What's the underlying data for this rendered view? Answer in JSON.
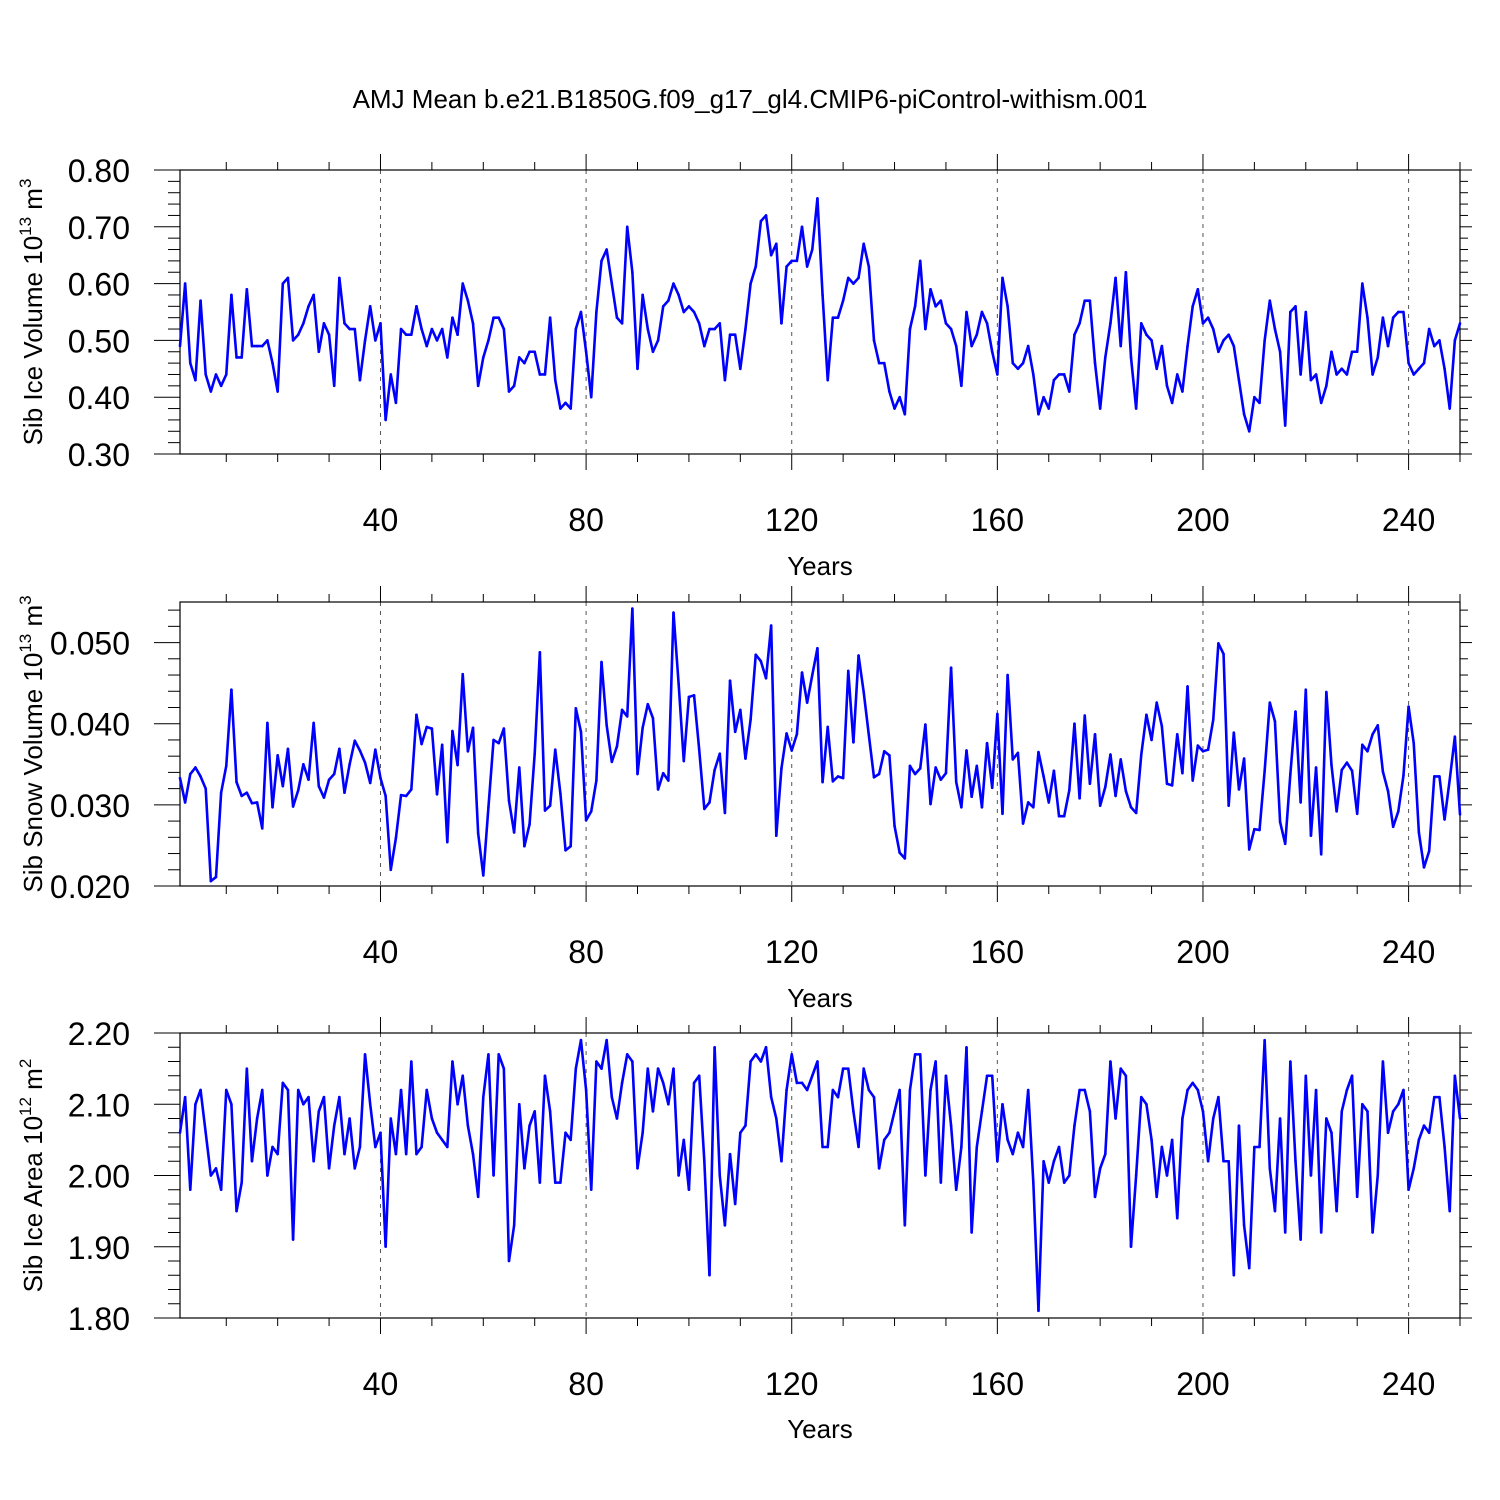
{
  "chart_data": {
    "type": "line",
    "title": "AMJ Mean b.e21.B1850G.f09_g17_gl4.CMIP6-piControl-withism.001",
    "line_color": "#0000ff",
    "grid": "vertical dashed at major x ticks",
    "x": {
      "label": "Years",
      "range": [
        1,
        250
      ],
      "ticks": [
        40,
        80,
        120,
        160,
        200,
        240
      ],
      "tick_labels": [
        "40",
        "80",
        "120",
        "160",
        "200",
        "240"
      ]
    },
    "panels": [
      {
        "id": "ice-volume",
        "ylabel": {
          "base": "Sib Ice Volume 10",
          "exp": "13",
          "unit": " m",
          "unit_exp": "3"
        },
        "ylim": [
          0.3,
          0.8
        ],
        "yticks": [
          0.3,
          0.4,
          0.5,
          0.6,
          0.7,
          0.8
        ],
        "ytick_labels": [
          "0.30",
          "0.40",
          "0.50",
          "0.60",
          "0.70",
          "0.80"
        ],
        "values": [
          0.49,
          0.6,
          0.46,
          0.43,
          0.57,
          0.44,
          0.41,
          0.44,
          0.42,
          0.44,
          0.58,
          0.47,
          0.47,
          0.59,
          0.49,
          0.49,
          0.49,
          0.5,
          0.46,
          0.41,
          0.6,
          0.61,
          0.5,
          0.51,
          0.53,
          0.56,
          0.58,
          0.48,
          0.53,
          0.51,
          0.42,
          0.61,
          0.53,
          0.52,
          0.52,
          0.43,
          0.5,
          0.56,
          0.5,
          0.53,
          0.36,
          0.44,
          0.39,
          0.52,
          0.51,
          0.51,
          0.56,
          0.52,
          0.49,
          0.52,
          0.5,
          0.52,
          0.47,
          0.54,
          0.51,
          0.6,
          0.57,
          0.53,
          0.42,
          0.47,
          0.5,
          0.54,
          0.54,
          0.52,
          0.41,
          0.42,
          0.47,
          0.46,
          0.48,
          0.48,
          0.44,
          0.44,
          0.54,
          0.43,
          0.38,
          0.39,
          0.38,
          0.52,
          0.55,
          0.48,
          0.4,
          0.55,
          0.64,
          0.66,
          0.6,
          0.54,
          0.53,
          0.7,
          0.62,
          0.45,
          0.58,
          0.52,
          0.48,
          0.5,
          0.56,
          0.57,
          0.6,
          0.58,
          0.55,
          0.56,
          0.55,
          0.53,
          0.49,
          0.52,
          0.52,
          0.53,
          0.43,
          0.51,
          0.51,
          0.45,
          0.52,
          0.6,
          0.63,
          0.71,
          0.72,
          0.65,
          0.67,
          0.53,
          0.63,
          0.64,
          0.64,
          0.7,
          0.63,
          0.66,
          0.75,
          0.58,
          0.43,
          0.54,
          0.54,
          0.57,
          0.61,
          0.6,
          0.61,
          0.67,
          0.63,
          0.5,
          0.46,
          0.46,
          0.41,
          0.38,
          0.4,
          0.37,
          0.52,
          0.56,
          0.64,
          0.52,
          0.59,
          0.56,
          0.57,
          0.53,
          0.52,
          0.49,
          0.42,
          0.55,
          0.49,
          0.51,
          0.55,
          0.53,
          0.48,
          0.44,
          0.61,
          0.56,
          0.46,
          0.45,
          0.46,
          0.49,
          0.44,
          0.37,
          0.4,
          0.38,
          0.43,
          0.44,
          0.44,
          0.41,
          0.51,
          0.53,
          0.57,
          0.57,
          0.46,
          0.38,
          0.47,
          0.53,
          0.61,
          0.49,
          0.62,
          0.47,
          0.38,
          0.53,
          0.51,
          0.5,
          0.45,
          0.49,
          0.42,
          0.39,
          0.44,
          0.41,
          0.49,
          0.56,
          0.59,
          0.53,
          0.54,
          0.52,
          0.48,
          0.5,
          0.51,
          0.49,
          0.43,
          0.37,
          0.34,
          0.4,
          0.39,
          0.5,
          0.57,
          0.52,
          0.48,
          0.35,
          0.55,
          0.56,
          0.44,
          0.55,
          0.43,
          0.44,
          0.39,
          0.42,
          0.48,
          0.44,
          0.45,
          0.44,
          0.48,
          0.48,
          0.6,
          0.54,
          0.44,
          0.47,
          0.54,
          0.49,
          0.54,
          0.55,
          0.55,
          0.46,
          0.44,
          0.45,
          0.46,
          0.52,
          0.49,
          0.5,
          0.45,
          0.38,
          0.5,
          0.53
        ]
      },
      {
        "id": "snow-volume",
        "ylabel": {
          "base": "Sib Snow Volume 10",
          "exp": "13",
          "unit": " m",
          "unit_exp": "3"
        },
        "ylim": [
          0.02,
          0.055
        ],
        "yticks": [
          0.02,
          0.03,
          0.04,
          0.05
        ],
        "ytick_labels": [
          "0.020",
          "0.030",
          "0.040",
          "0.050"
        ],
        "values": [
          0.0333,
          0.0303,
          0.0338,
          0.0346,
          0.0335,
          0.032,
          0.0206,
          0.0211,
          0.0315,
          0.0348,
          0.0442,
          0.0328,
          0.0311,
          0.0315,
          0.0302,
          0.0303,
          0.0271,
          0.0401,
          0.0297,
          0.0361,
          0.0323,
          0.0369,
          0.0298,
          0.0318,
          0.035,
          0.0331,
          0.0401,
          0.0323,
          0.0309,
          0.0331,
          0.0338,
          0.0369,
          0.0315,
          0.035,
          0.0379,
          0.0367,
          0.0352,
          0.0327,
          0.0368,
          0.0333,
          0.0311,
          0.022,
          0.0259,
          0.0312,
          0.0311,
          0.0319,
          0.0411,
          0.0375,
          0.0396,
          0.0394,
          0.0313,
          0.0374,
          0.0254,
          0.0391,
          0.0349,
          0.0461,
          0.0366,
          0.0395,
          0.0265,
          0.0213,
          0.0297,
          0.038,
          0.0376,
          0.0394,
          0.0305,
          0.0266,
          0.0346,
          0.0249,
          0.0276,
          0.0363,
          0.0488,
          0.0293,
          0.0299,
          0.0368,
          0.0314,
          0.0244,
          0.0249,
          0.0419,
          0.039,
          0.0281,
          0.0292,
          0.033,
          0.0476,
          0.0398,
          0.0353,
          0.0372,
          0.0417,
          0.0409,
          0.0542,
          0.0338,
          0.0395,
          0.0424,
          0.0407,
          0.0319,
          0.0339,
          0.033,
          0.0537,
          0.0449,
          0.0354,
          0.0433,
          0.0435,
          0.0368,
          0.0295,
          0.0303,
          0.0343,
          0.0363,
          0.029,
          0.0453,
          0.039,
          0.0417,
          0.0357,
          0.0405,
          0.0485,
          0.0477,
          0.0456,
          0.0521,
          0.0262,
          0.0345,
          0.0388,
          0.0367,
          0.0387,
          0.0463,
          0.0426,
          0.046,
          0.0493,
          0.0328,
          0.0396,
          0.0329,
          0.0335,
          0.0333,
          0.0465,
          0.0377,
          0.0484,
          0.0439,
          0.0386,
          0.0334,
          0.0338,
          0.0366,
          0.0361,
          0.0274,
          0.0241,
          0.0234,
          0.0348,
          0.0338,
          0.0345,
          0.0399,
          0.0301,
          0.0346,
          0.0331,
          0.0339,
          0.0469,
          0.0328,
          0.0297,
          0.0367,
          0.031,
          0.0348,
          0.0297,
          0.0376,
          0.0321,
          0.0412,
          0.0289,
          0.046,
          0.0356,
          0.0364,
          0.0277,
          0.0303,
          0.0297,
          0.0365,
          0.0335,
          0.0303,
          0.0342,
          0.0286,
          0.0286,
          0.0318,
          0.04,
          0.0308,
          0.041,
          0.0326,
          0.0387,
          0.0299,
          0.0322,
          0.0362,
          0.0311,
          0.0356,
          0.0317,
          0.0297,
          0.029,
          0.0362,
          0.0411,
          0.038,
          0.0426,
          0.0397,
          0.0326,
          0.0324,
          0.0387,
          0.0339,
          0.0446,
          0.033,
          0.0373,
          0.0366,
          0.0368,
          0.0405,
          0.0499,
          0.0486,
          0.0299,
          0.0389,
          0.0319,
          0.0357,
          0.0245,
          0.027,
          0.0269,
          0.0342,
          0.0426,
          0.0403,
          0.0279,
          0.0252,
          0.0338,
          0.0415,
          0.0303,
          0.0442,
          0.0262,
          0.0346,
          0.0239,
          0.0439,
          0.0349,
          0.0292,
          0.0343,
          0.0352,
          0.0342,
          0.0289,
          0.0374,
          0.0366,
          0.0387,
          0.0398,
          0.0341,
          0.0317,
          0.0273,
          0.0292,
          0.0336,
          0.0421,
          0.0376,
          0.0266,
          0.0223,
          0.0243,
          0.0335,
          0.0335,
          0.0282,
          0.0331,
          0.0384,
          0.0288
        ]
      },
      {
        "id": "ice-area",
        "ylabel": {
          "base": "Sib Ice Area 10",
          "exp": "12",
          "unit": " m",
          "unit_exp": "2"
        },
        "ylim": [
          1.8,
          2.2
        ],
        "yticks": [
          1.8,
          1.9,
          2.0,
          2.1,
          2.2
        ],
        "ytick_labels": [
          "1.80",
          "1.90",
          "2.00",
          "2.10",
          "2.20"
        ],
        "values": [
          2.06,
          2.11,
          1.98,
          2.1,
          2.12,
          2.06,
          2.0,
          2.01,
          1.98,
          2.12,
          2.1,
          1.95,
          1.99,
          2.15,
          2.02,
          2.08,
          2.12,
          2.0,
          2.04,
          2.03,
          2.13,
          2.12,
          1.91,
          2.12,
          2.1,
          2.11,
          2.02,
          2.09,
          2.11,
          2.01,
          2.07,
          2.11,
          2.03,
          2.08,
          2.01,
          2.04,
          2.17,
          2.1,
          2.04,
          2.06,
          1.9,
          2.08,
          2.03,
          2.12,
          2.03,
          2.16,
          2.03,
          2.04,
          2.12,
          2.08,
          2.06,
          2.05,
          2.04,
          2.16,
          2.1,
          2.14,
          2.07,
          2.03,
          1.97,
          2.11,
          2.17,
          2.0,
          2.17,
          2.15,
          1.88,
          1.93,
          2.1,
          2.01,
          2.07,
          2.09,
          1.99,
          2.14,
          2.09,
          1.99,
          1.99,
          2.06,
          2.05,
          2.15,
          2.19,
          2.12,
          1.98,
          2.16,
          2.15,
          2.19,
          2.11,
          2.08,
          2.13,
          2.17,
          2.16,
          2.01,
          2.06,
          2.15,
          2.09,
          2.15,
          2.13,
          2.1,
          2.15,
          2.0,
          2.05,
          1.98,
          2.13,
          2.14,
          2.02,
          1.86,
          2.18,
          2.0,
          1.93,
          2.03,
          1.96,
          2.06,
          2.07,
          2.16,
          2.17,
          2.16,
          2.18,
          2.11,
          2.08,
          2.02,
          2.12,
          2.17,
          2.13,
          2.13,
          2.12,
          2.14,
          2.16,
          2.04,
          2.04,
          2.12,
          2.11,
          2.15,
          2.15,
          2.09,
          2.04,
          2.15,
          2.12,
          2.11,
          2.01,
          2.05,
          2.06,
          2.09,
          2.12,
          1.93,
          2.12,
          2.17,
          2.17,
          2.0,
          2.12,
          2.16,
          1.99,
          2.14,
          2.07,
          1.98,
          2.04,
          2.18,
          1.92,
          2.04,
          2.09,
          2.14,
          2.14,
          2.02,
          2.1,
          2.05,
          2.03,
          2.06,
          2.04,
          2.12,
          1.99,
          1.81,
          2.02,
          1.99,
          2.02,
          2.04,
          1.99,
          2.0,
          2.07,
          2.12,
          2.12,
          2.09,
          1.97,
          2.01,
          2.03,
          2.16,
          2.08,
          2.15,
          2.14,
          1.9,
          2.0,
          2.11,
          2.1,
          2.05,
          1.97,
          2.04,
          2.0,
          2.05,
          1.94,
          2.08,
          2.12,
          2.13,
          2.12,
          2.09,
          2.02,
          2.08,
          2.11,
          2.02,
          2.02,
          1.86,
          2.07,
          1.93,
          1.87,
          2.04,
          2.04,
          2.19,
          2.01,
          1.95,
          2.08,
          1.92,
          2.16,
          2.02,
          1.91,
          2.14,
          2.0,
          2.12,
          1.92,
          2.08,
          2.06,
          1.95,
          2.09,
          2.12,
          2.14,
          1.97,
          2.1,
          2.09,
          1.92,
          2.0,
          2.16,
          2.06,
          2.09,
          2.1,
          2.12,
          1.98,
          2.01,
          2.05,
          2.07,
          2.06,
          2.11,
          2.11,
          2.04,
          1.95,
          2.14,
          2.08
        ]
      }
    ]
  }
}
